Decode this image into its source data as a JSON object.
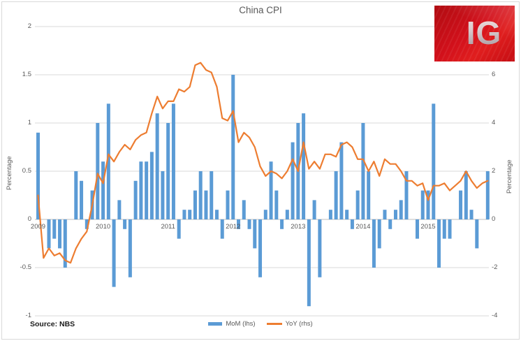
{
  "title": "China CPI",
  "source": "Source: NBS",
  "logo": {
    "text": "IG"
  },
  "legend": {
    "mom": "MoM (lhs)",
    "yoy": "YoY (rhs)"
  },
  "colors": {
    "bar": "#5B9BD5",
    "line": "#ED7D31",
    "grid": "#D9D9D9",
    "axis_line": "#BFBFBF",
    "text": "#595959",
    "logo_red": "#D2101B"
  },
  "left_axis": {
    "title": "Percentage",
    "ticks": [
      2,
      1.5,
      1,
      0.5,
      0,
      -0.5,
      -1
    ]
  },
  "right_axis": {
    "title": "Percentage",
    "ticks": [
      6,
      4,
      2,
      0,
      -2,
      -4
    ]
  },
  "chart_data": {
    "type": "combo-bar-line",
    "title": "China CPI",
    "x_unit": "month",
    "x_range": [
      "2009-01",
      "2015-12"
    ],
    "year_labels": [
      "2009",
      "2010",
      "2011",
      "2012",
      "2013",
      "2014",
      "2015"
    ],
    "grid": true,
    "legend_position": "bottom",
    "left_axis": {
      "label": "Percentage",
      "range": [
        -1,
        2
      ],
      "ticks": [
        2,
        1.5,
        1,
        0.5,
        0,
        -0.5,
        -1
      ]
    },
    "right_axis": {
      "label": "Percentage",
      "range": [
        -4,
        8
      ],
      "ticks": [
        6,
        4,
        2,
        0,
        -2,
        -4
      ]
    },
    "series": [
      {
        "name": "MoM (lhs)",
        "type": "bar",
        "axis": "left",
        "color": "#5B9BD5",
        "values_by_year": {
          "2009": [
            0.9,
            0,
            -0.3,
            -0.2,
            -0.3,
            -0.5,
            0,
            0.5,
            0.4,
            -0.1,
            0.3,
            1.0
          ],
          "2010": [
            0.6,
            1.2,
            -0.7,
            0.2,
            -0.1,
            -0.6,
            0.4,
            0.6,
            0.6,
            0.7,
            1.1,
            0.5
          ],
          "2011": [
            1.0,
            1.2,
            -0.2,
            0.1,
            0.1,
            0.3,
            0.5,
            0.3,
            0.5,
            0.1,
            -0.2,
            0.3
          ],
          "2012": [
            1.5,
            -0.1,
            0.2,
            -0.1,
            -0.3,
            -0.6,
            0.1,
            0.6,
            0.3,
            -0.1,
            0.1,
            0.8
          ],
          "2013": [
            1.0,
            1.1,
            -0.9,
            0.2,
            -0.6,
            0,
            0.1,
            0.5,
            0.8,
            0.1,
            -0.1,
            0.3
          ],
          "2014": [
            1.0,
            0.5,
            -0.5,
            -0.3,
            0.1,
            -0.1,
            0.1,
            0.2,
            0.5,
            0,
            -0.2,
            0.3
          ],
          "2015": [
            0.3,
            1.2,
            -0.5,
            -0.2,
            -0.2,
            0,
            0.3,
            0.5,
            0.1,
            -0.3,
            0,
            0.5
          ]
        }
      },
      {
        "name": "YoY (rhs)",
        "type": "line",
        "axis": "right",
        "color": "#ED7D31",
        "values_by_year": {
          "2009": [
            1.0,
            -1.6,
            -1.2,
            -1.5,
            -1.4,
            -1.7,
            -1.8,
            -1.2,
            -0.8,
            -0.5,
            0.6,
            1.9
          ],
          "2010": [
            1.5,
            2.7,
            2.4,
            2.8,
            3.1,
            2.9,
            3.3,
            3.5,
            3.6,
            4.4,
            5.1,
            4.6
          ],
          "2011": [
            4.9,
            4.9,
            5.4,
            5.3,
            5.5,
            6.4,
            6.5,
            6.2,
            6.1,
            5.5,
            4.2,
            4.1
          ],
          "2012": [
            4.5,
            3.2,
            3.6,
            3.4,
            3.0,
            2.2,
            1.8,
            2.0,
            1.9,
            1.7,
            2.0,
            2.5
          ],
          "2013": [
            2.0,
            3.2,
            2.1,
            2.4,
            2.1,
            2.7,
            2.7,
            2.6,
            3.1,
            3.2,
            3.0,
            2.5
          ],
          "2014": [
            2.5,
            2.0,
            2.4,
            1.8,
            2.5,
            2.3,
            2.3,
            2.0,
            1.6,
            1.6,
            1.4,
            1.5
          ],
          "2015": [
            0.8,
            1.4,
            1.4,
            1.5,
            1.2,
            1.4,
            1.6,
            2.0,
            1.6,
            1.3,
            1.5,
            1.6
          ]
        }
      }
    ]
  }
}
